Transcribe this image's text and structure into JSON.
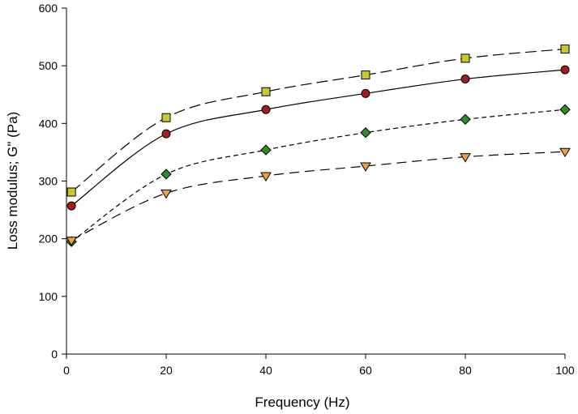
{
  "chart_data": {
    "type": "line",
    "title": "",
    "xlabel": "Frequency (Hz)",
    "ylabel": "Loss modulus; G\" (Pa)",
    "xlim": [
      0,
      100
    ],
    "ylim": [
      0,
      600
    ],
    "xticks": [
      0,
      20,
      40,
      60,
      80,
      100
    ],
    "yticks": [
      0,
      100,
      200,
      300,
      400,
      500,
      600
    ],
    "grid": false,
    "x": [
      1,
      20,
      40,
      60,
      80,
      100
    ],
    "series": [
      {
        "name": "series-square",
        "marker": "square",
        "line": "long-dash",
        "color": "#c8c832",
        "values": [
          281,
          410,
          455,
          484,
          513,
          529
        ]
      },
      {
        "name": "series-circle",
        "marker": "circle",
        "line": "solid",
        "color": "#a01e1e",
        "values": [
          257,
          382,
          424,
          452,
          477,
          493
        ]
      },
      {
        "name": "series-diamond",
        "marker": "diamond",
        "line": "short-dash",
        "color": "#2e8b2e",
        "values": [
          195,
          312,
          354,
          384,
          407,
          424
        ]
      },
      {
        "name": "series-triangle",
        "marker": "triangle-down",
        "line": "dash",
        "color": "#f0a040",
        "values": [
          197,
          279,
          309,
          326,
          342,
          351
        ]
      }
    ]
  }
}
